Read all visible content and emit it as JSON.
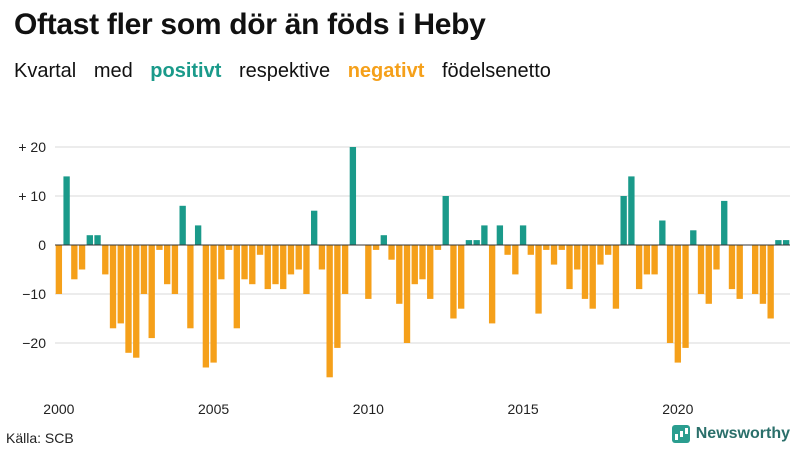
{
  "title": "Oftast fler som dör än föds i Heby",
  "subtitle": {
    "part1": "Kvartal",
    "part2": "med",
    "positive_word": "positivt",
    "part3": "respektive",
    "negative_word": "negativt",
    "part4": "födelsenetto"
  },
  "source": "Källa: SCB",
  "brand": "Newsworthy",
  "colors": {
    "positive": "#1a9a8a",
    "negative": "#f5a01a"
  },
  "chart_data": {
    "type": "bar",
    "start": "2000-Q1",
    "frequency": "quarterly",
    "ylim": [
      -28,
      21
    ],
    "yticks": [
      {
        "value": 20,
        "label": "+ 20"
      },
      {
        "value": 10,
        "label": "+ 10"
      },
      {
        "value": 0,
        "label": "0"
      },
      {
        "value": -10,
        "label": "−10"
      },
      {
        "value": -20,
        "label": "−20"
      }
    ],
    "xticks": [
      {
        "year": 2000,
        "label": "2000"
      },
      {
        "year": 2005,
        "label": "2005"
      },
      {
        "year": 2010,
        "label": "2010"
      },
      {
        "year": 2015,
        "label": "2015"
      },
      {
        "year": 2020,
        "label": "2020"
      }
    ],
    "values": [
      -10,
      14,
      -7,
      -5,
      2,
      2,
      -6,
      -17,
      -16,
      -22,
      -23,
      -10,
      -19,
      -1,
      -8,
      -10,
      8,
      -17,
      4,
      -25,
      -24,
      -7,
      -1,
      -17,
      -7,
      -8,
      -2,
      -9,
      -8,
      -9,
      -6,
      -5,
      -10,
      7,
      -5,
      -27,
      -21,
      -10,
      20,
      0,
      -11,
      -1,
      2,
      -3,
      -12,
      -20,
      -8,
      -7,
      -11,
      -1,
      10,
      -15,
      -13,
      1,
      1,
      4,
      -16,
      4,
      -2,
      -6,
      4,
      -2,
      -14,
      -1,
      -4,
      -1,
      -9,
      -5,
      -11,
      -13,
      -4,
      -2,
      -13,
      10,
      14,
      -9,
      -6,
      -6,
      5,
      -20,
      -24,
      -21,
      3,
      -10,
      -12,
      -5,
      9,
      -9,
      -11,
      0,
      -10,
      -12,
      -15,
      1,
      1
    ]
  }
}
